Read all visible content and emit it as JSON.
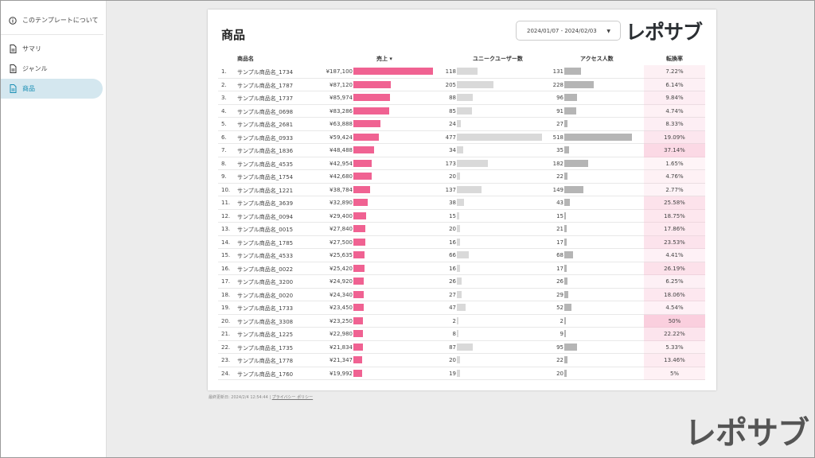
{
  "sidebar": {
    "about": "このテンプレートについて",
    "items": [
      {
        "label": "サマリ"
      },
      {
        "label": "ジャンル"
      },
      {
        "label": "商品"
      }
    ]
  },
  "report": {
    "title": "商品",
    "date_range": "2024/01/07 - 2024/02/03",
    "logo": "レポサブ"
  },
  "table": {
    "headers": {
      "name": "商品名",
      "sales": "売上 ▾",
      "users": "ユニークユーザー数",
      "access": "アクセス人数",
      "conversion": "転換率"
    },
    "rows": [
      {
        "no": "1.",
        "name": "サンプル商品名_1734",
        "sales": 187100,
        "sales_text": "¥187,100",
        "users": 118,
        "access": 131,
        "conv": "7.22%",
        "conv_val": 7.22
      },
      {
        "no": "2.",
        "name": "サンプル商品名_1787",
        "sales": 87120,
        "sales_text": "¥87,120",
        "users": 205,
        "access": 228,
        "conv": "6.14%",
        "conv_val": 6.14
      },
      {
        "no": "3.",
        "name": "サンプル商品名_1737",
        "sales": 85974,
        "sales_text": "¥85,974",
        "users": 88,
        "access": 96,
        "conv": "9.84%",
        "conv_val": 9.84
      },
      {
        "no": "4.",
        "name": "サンプル商品名_0698",
        "sales": 83286,
        "sales_text": "¥83,286",
        "users": 85,
        "access": 91,
        "conv": "4.74%",
        "conv_val": 4.74
      },
      {
        "no": "5.",
        "name": "サンプル商品名_2681",
        "sales": 63888,
        "sales_text": "¥63,888",
        "users": 24,
        "access": 27,
        "conv": "8.33%",
        "conv_val": 8.33
      },
      {
        "no": "6.",
        "name": "サンプル商品名_0933",
        "sales": 59424,
        "sales_text": "¥59,424",
        "users": 477,
        "access": 518,
        "conv": "19.09%",
        "conv_val": 19.09
      },
      {
        "no": "7.",
        "name": "サンプル商品名_1836",
        "sales": 48488,
        "sales_text": "¥48,488",
        "users": 34,
        "access": 35,
        "conv": "37.14%",
        "conv_val": 37.14
      },
      {
        "no": "8.",
        "name": "サンプル商品名_4535",
        "sales": 42954,
        "sales_text": "¥42,954",
        "users": 173,
        "access": 182,
        "conv": "1.65%",
        "conv_val": 1.65
      },
      {
        "no": "9.",
        "name": "サンプル商品名_1754",
        "sales": 42680,
        "sales_text": "¥42,680",
        "users": 20,
        "access": 22,
        "conv": "4.76%",
        "conv_val": 4.76
      },
      {
        "no": "10.",
        "name": "サンプル商品名_1221",
        "sales": 38784,
        "sales_text": "¥38,784",
        "users": 137,
        "access": 149,
        "conv": "2.77%",
        "conv_val": 2.77
      },
      {
        "no": "11.",
        "name": "サンプル商品名_3639",
        "sales": 32890,
        "sales_text": "¥32,890",
        "users": 38,
        "access": 43,
        "conv": "25.58%",
        "conv_val": 25.58
      },
      {
        "no": "12.",
        "name": "サンプル商品名_0094",
        "sales": 29400,
        "sales_text": "¥29,400",
        "users": 15,
        "access": 15,
        "conv": "18.75%",
        "conv_val": 18.75
      },
      {
        "no": "13.",
        "name": "サンプル商品名_0015",
        "sales": 27840,
        "sales_text": "¥27,840",
        "users": 20,
        "access": 21,
        "conv": "17.86%",
        "conv_val": 17.86
      },
      {
        "no": "14.",
        "name": "サンプル商品名_1785",
        "sales": 27500,
        "sales_text": "¥27,500",
        "users": 16,
        "access": 17,
        "conv": "23.53%",
        "conv_val": 23.53
      },
      {
        "no": "15.",
        "name": "サンプル商品名_4533",
        "sales": 25635,
        "sales_text": "¥25,635",
        "users": 66,
        "access": 68,
        "conv": "4.41%",
        "conv_val": 4.41
      },
      {
        "no": "16.",
        "name": "サンプル商品名_0022",
        "sales": 25420,
        "sales_text": "¥25,420",
        "users": 16,
        "access": 17,
        "conv": "26.19%",
        "conv_val": 26.19
      },
      {
        "no": "17.",
        "name": "サンプル商品名_3200",
        "sales": 24920,
        "sales_text": "¥24,920",
        "users": 26,
        "access": 26,
        "conv": "6.25%",
        "conv_val": 6.25
      },
      {
        "no": "18.",
        "name": "サンプル商品名_0020",
        "sales": 24340,
        "sales_text": "¥24,340",
        "users": 27,
        "access": 29,
        "conv": "18.06%",
        "conv_val": 18.06
      },
      {
        "no": "19.",
        "name": "サンプル商品名_1733",
        "sales": 23450,
        "sales_text": "¥23,450",
        "users": 47,
        "access": 52,
        "conv": "4.54%",
        "conv_val": 4.54
      },
      {
        "no": "20.",
        "name": "サンプル商品名_3308",
        "sales": 23250,
        "sales_text": "¥23,250",
        "users": 2,
        "access": 2,
        "conv": "50%",
        "conv_val": 50
      },
      {
        "no": "21.",
        "name": "サンプル商品名_1225",
        "sales": 22980,
        "sales_text": "¥22,980",
        "users": 8,
        "access": 9,
        "conv": "22.22%",
        "conv_val": 22.22
      },
      {
        "no": "22.",
        "name": "サンプル商品名_1735",
        "sales": 21834,
        "sales_text": "¥21,834",
        "users": 87,
        "access": 95,
        "conv": "5.33%",
        "conv_val": 5.33
      },
      {
        "no": "23.",
        "name": "サンプル商品名_1778",
        "sales": 21347,
        "sales_text": "¥21,347",
        "users": 20,
        "access": 22,
        "conv": "13.46%",
        "conv_val": 13.46
      },
      {
        "no": "24.",
        "name": "サンプル商品名_1760",
        "sales": 19992,
        "sales_text": "¥19,992",
        "users": 19,
        "access": 20,
        "conv": "5%",
        "conv_val": 5
      }
    ]
  },
  "footer": {
    "updated": "最終更新日: 2024/2/4 12:54:44",
    "separator": "|",
    "privacy": "プライバシー ポリシー"
  },
  "watermark": "レポサブ",
  "colors": {
    "sales_bar": "#f06292",
    "users_bar": "#d9d9d9",
    "access_bar": "#b5b5b5",
    "conv_base": "#f8bbd0"
  }
}
